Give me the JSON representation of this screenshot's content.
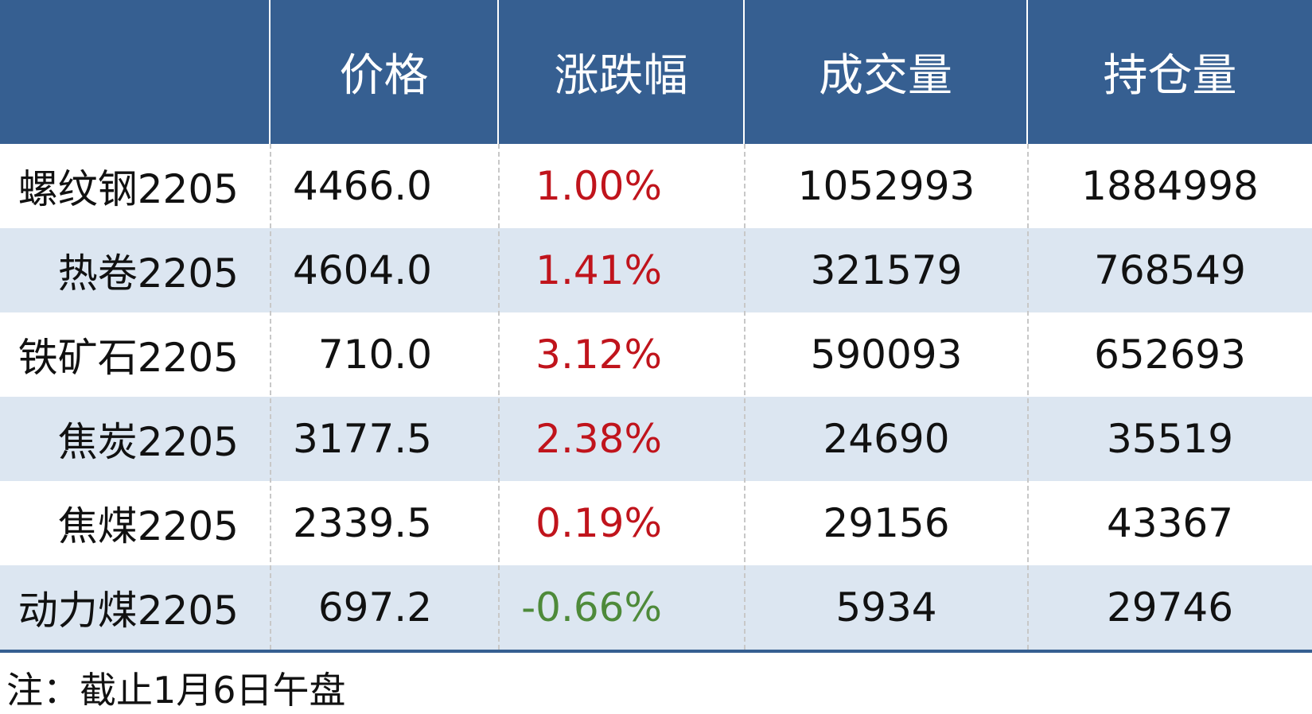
{
  "table": {
    "header": [
      "价格",
      "涨跌幅",
      "成交量",
      "持仓量"
    ],
    "rows": [
      [
        "螺纹钢2205",
        "4466.0",
        "1.00%",
        "1052993",
        "1884998"
      ],
      [
        "热卷2205",
        "4604.0",
        "1.41%",
        "321579",
        "768549"
      ],
      [
        "铁矿石2205",
        "710.0",
        "3.12%",
        "590093",
        "652693"
      ],
      [
        "焦炭2205",
        "3177.5",
        "2.38%",
        "24690",
        "35519"
      ],
      [
        "焦煤2205",
        "2339.5",
        "0.19%",
        "29156",
        "43367"
      ],
      [
        "动力煤2205",
        "697.2",
        "-0.66%",
        "5934",
        "29746"
      ]
    ]
  },
  "note": "注：截止1月6日午盘"
}
